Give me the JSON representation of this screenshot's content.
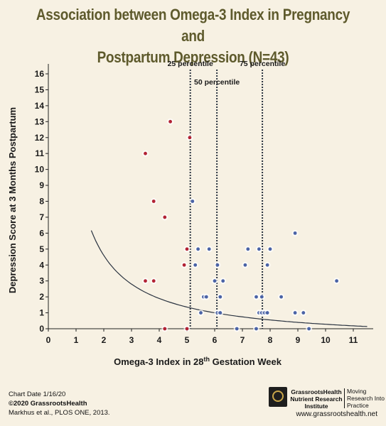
{
  "chart_data": {
    "type": "scatter",
    "title_line1": "Association between Omega-3 Index in Pregnancy and",
    "title_line2": "Postpartum Depression (N=43)",
    "xlabel": "Omega-3 Index in 28",
    "xlabel_sup": "th",
    "xlabel_tail": " Gestation Week",
    "ylabel": "Depression Score at 3 Months Postpartum",
    "xlim": [
      0,
      11.5
    ],
    "ylim": [
      0,
      16.5
    ],
    "xticks": [
      0,
      1,
      2,
      3,
      4,
      5,
      6,
      7,
      8,
      9,
      10,
      11
    ],
    "yticks": [
      0,
      1,
      2,
      3,
      4,
      5,
      6,
      7,
      8,
      9,
      10,
      11,
      12,
      13,
      14,
      15,
      16
    ],
    "percentiles": [
      {
        "label": "25 percentile",
        "x": 5.12
      },
      {
        "label": "50 percentile",
        "x": 6.08
      },
      {
        "label": "75 percentile",
        "x": 7.72
      }
    ],
    "trend_curve": {
      "type": "inverse",
      "a": 10.8,
      "b": 0.8,
      "x_start": 1.55,
      "x_end": 11.5
    },
    "colors": {
      "low": "#b22234",
      "high": "#4a63a6",
      "curve": "#2a3340",
      "percentile": "#2a3340"
    },
    "series": [
      {
        "group": "low",
        "points": [
          [
            3.5,
            11
          ],
          [
            4.4,
            13
          ],
          [
            3.8,
            8
          ],
          [
            4.2,
            7
          ],
          [
            5.1,
            12
          ],
          [
            5.0,
            5
          ],
          [
            4.9,
            4
          ],
          [
            3.5,
            3
          ],
          [
            3.8,
            3
          ],
          [
            4.2,
            0
          ],
          [
            5.0,
            0
          ]
        ]
      },
      {
        "group": "high",
        "points": [
          [
            5.2,
            8
          ],
          [
            5.3,
            4
          ],
          [
            5.4,
            5
          ],
          [
            5.5,
            1
          ],
          [
            5.6,
            2
          ],
          [
            5.7,
            2
          ],
          [
            5.8,
            5
          ],
          [
            6.0,
            3
          ],
          [
            6.1,
            4
          ],
          [
            6.1,
            1
          ],
          [
            6.2,
            2
          ],
          [
            6.2,
            1
          ],
          [
            6.3,
            3
          ],
          [
            6.8,
            0
          ],
          [
            7.1,
            4
          ],
          [
            7.2,
            5
          ],
          [
            7.5,
            2
          ],
          [
            7.5,
            0
          ],
          [
            7.6,
            5
          ],
          [
            7.6,
            1
          ],
          [
            7.7,
            1
          ],
          [
            7.7,
            2
          ],
          [
            7.8,
            1
          ],
          [
            7.9,
            4
          ],
          [
            7.9,
            1
          ],
          [
            8.0,
            5
          ],
          [
            8.4,
            2
          ],
          [
            8.9,
            6
          ],
          [
            8.9,
            1
          ],
          [
            9.2,
            1
          ],
          [
            9.4,
            0
          ],
          [
            10.4,
            3
          ]
        ]
      }
    ]
  },
  "footer": {
    "date": "Chart Date 1/16/20",
    "copyright": "©2020 GrassrootsHealth",
    "citation": "Markhus et al., PLOS ONE, 2013.",
    "logo_name": "GrassrootsHealth Nutrient Research Institute",
    "logo_tagline": "Moving Research Into Practice",
    "website": "www.grassrootshealth.net"
  }
}
